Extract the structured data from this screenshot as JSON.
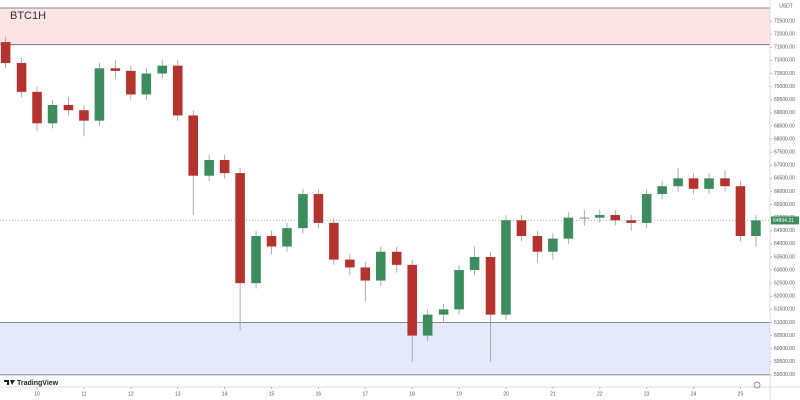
{
  "chart_data": {
    "type": "candlestick",
    "title": "BTC1H",
    "brand": "TradingView",
    "currency": "USDT",
    "x": [
      9.33,
      9.67,
      10.0,
      10.33,
      10.67,
      11.0,
      11.33,
      11.67,
      12.0,
      12.33,
      12.67,
      13.0,
      13.33,
      13.67,
      14.0,
      14.33,
      14.67,
      15.0,
      15.33,
      15.67,
      16.0,
      16.33,
      16.67,
      17.0,
      17.33,
      17.67,
      18.0,
      18.33,
      18.67,
      19.0,
      19.33,
      19.67,
      20.0,
      20.33,
      20.67,
      21.0,
      21.33,
      21.67,
      22.0,
      22.33,
      22.67,
      23.0,
      23.33,
      23.67,
      24.0,
      24.33,
      24.67,
      25.0,
      25.33
    ],
    "open": [
      71700,
      70900,
      69800,
      68600,
      69300,
      69100,
      68700,
      70700,
      70600,
      69700,
      70500,
      70800,
      68900,
      66600,
      67200,
      66700,
      62500,
      64300,
      63900,
      64600,
      65900,
      64800,
      63400,
      63100,
      62600,
      63700,
      63200,
      60500,
      61300,
      61500,
      63000,
      63500,
      61300,
      64900,
      64300,
      63700,
      64200,
      65000,
      65000,
      65100,
      64900,
      64800,
      65900,
      66200,
      66500,
      66100,
      66500,
      66200,
      64300
    ],
    "close": [
      70900,
      69800,
      68600,
      69300,
      69100,
      68700,
      70700,
      70600,
      69700,
      70500,
      70800,
      68900,
      66600,
      67200,
      66700,
      62500,
      64300,
      63900,
      64600,
      65900,
      64800,
      63400,
      63100,
      62600,
      63700,
      63200,
      60500,
      61300,
      61500,
      63000,
      63500,
      61300,
      64900,
      64300,
      63700,
      64200,
      65000,
      65000,
      65100,
      64900,
      64800,
      65900,
      66200,
      66500,
      66100,
      66500,
      66200,
      64300,
      64894.31
    ],
    "high": [
      71900,
      71100,
      70000,
      69500,
      69600,
      69300,
      70900,
      71000,
      70800,
      70700,
      71000,
      71000,
      69100,
      67400,
      67400,
      66900,
      64500,
      64500,
      64800,
      66100,
      66100,
      65000,
      63600,
      63300,
      63900,
      63900,
      63400,
      61500,
      61700,
      63200,
      63900,
      63700,
      65100,
      65100,
      64500,
      64400,
      65200,
      65300,
      65300,
      65300,
      65100,
      66100,
      66400,
      66900,
      66700,
      66700,
      66800,
      66400,
      65100
    ],
    "low": [
      70700,
      69600,
      68300,
      68400,
      68900,
      68100,
      68500,
      70300,
      69500,
      69500,
      70300,
      68700,
      65100,
      66400,
      66500,
      60700,
      62300,
      63600,
      63700,
      64400,
      64600,
      63200,
      62800,
      61800,
      62400,
      62900,
      59500,
      60300,
      61000,
      61300,
      62800,
      59500,
      61100,
      64100,
      63300,
      63400,
      64000,
      64700,
      64800,
      64700,
      64500,
      64600,
      65700,
      66000,
      65900,
      65900,
      66000,
      64100,
      63900
    ],
    "last_price": {
      "value": 64894.31,
      "label": "64894.31"
    },
    "zones": [
      {
        "from": 71600,
        "to": 73000,
        "color": "#fce4e4"
      },
      {
        "from": 59000,
        "to": 61000,
        "color": "#e4e9fc"
      }
    ],
    "up_color": "#3d8c5e",
    "down_color": "#b5332e",
    "xlim": [
      9.21,
      25.63
    ],
    "xticks": [
      10,
      11,
      12,
      13,
      14,
      15,
      16,
      17,
      18,
      19,
      20,
      21,
      22,
      23,
      24,
      25
    ],
    "ylim": [
      58500,
      73000
    ],
    "yticks": [
      {
        "value": 59000,
        "label": "59000.00"
      },
      {
        "value": 59500,
        "label": "59500.00"
      },
      {
        "value": 60000,
        "label": "60000.00"
      },
      {
        "value": 60500,
        "label": "60500.00"
      },
      {
        "value": 61000,
        "label": "61000.00"
      },
      {
        "value": 61500,
        "label": "61500.00"
      },
      {
        "value": 62000,
        "label": "62000.00"
      },
      {
        "value": 62500,
        "label": "62500.00"
      },
      {
        "value": 63000,
        "label": "63000.00"
      },
      {
        "value": 63500,
        "label": "63500.00"
      },
      {
        "value": 64000,
        "label": "64000.00"
      },
      {
        "value": 64500,
        "label": "64500.00"
      },
      {
        "value": 65000,
        "label": "65000.00"
      },
      {
        "value": 65500,
        "label": "65500.00"
      },
      {
        "value": 66000,
        "label": "66000.00"
      },
      {
        "value": 66500,
        "label": "66500.00"
      },
      {
        "value": 67000,
        "label": "67000.00"
      },
      {
        "value": 67500,
        "label": "67500.00"
      },
      {
        "value": 68000,
        "label": "68000.00"
      },
      {
        "value": 68500,
        "label": "68500.00"
      },
      {
        "value": 69000,
        "label": "69000.00"
      },
      {
        "value": 69500,
        "label": "69500.00"
      },
      {
        "value": 70000,
        "label": "70000.00"
      },
      {
        "value": 70500,
        "label": "70500.00"
      },
      {
        "value": 71000,
        "label": "71000.00"
      },
      {
        "value": 71500,
        "label": "71500.00"
      },
      {
        "value": 72000,
        "label": "72000.00"
      },
      {
        "value": 72500,
        "label": "72500.00"
      }
    ]
  }
}
